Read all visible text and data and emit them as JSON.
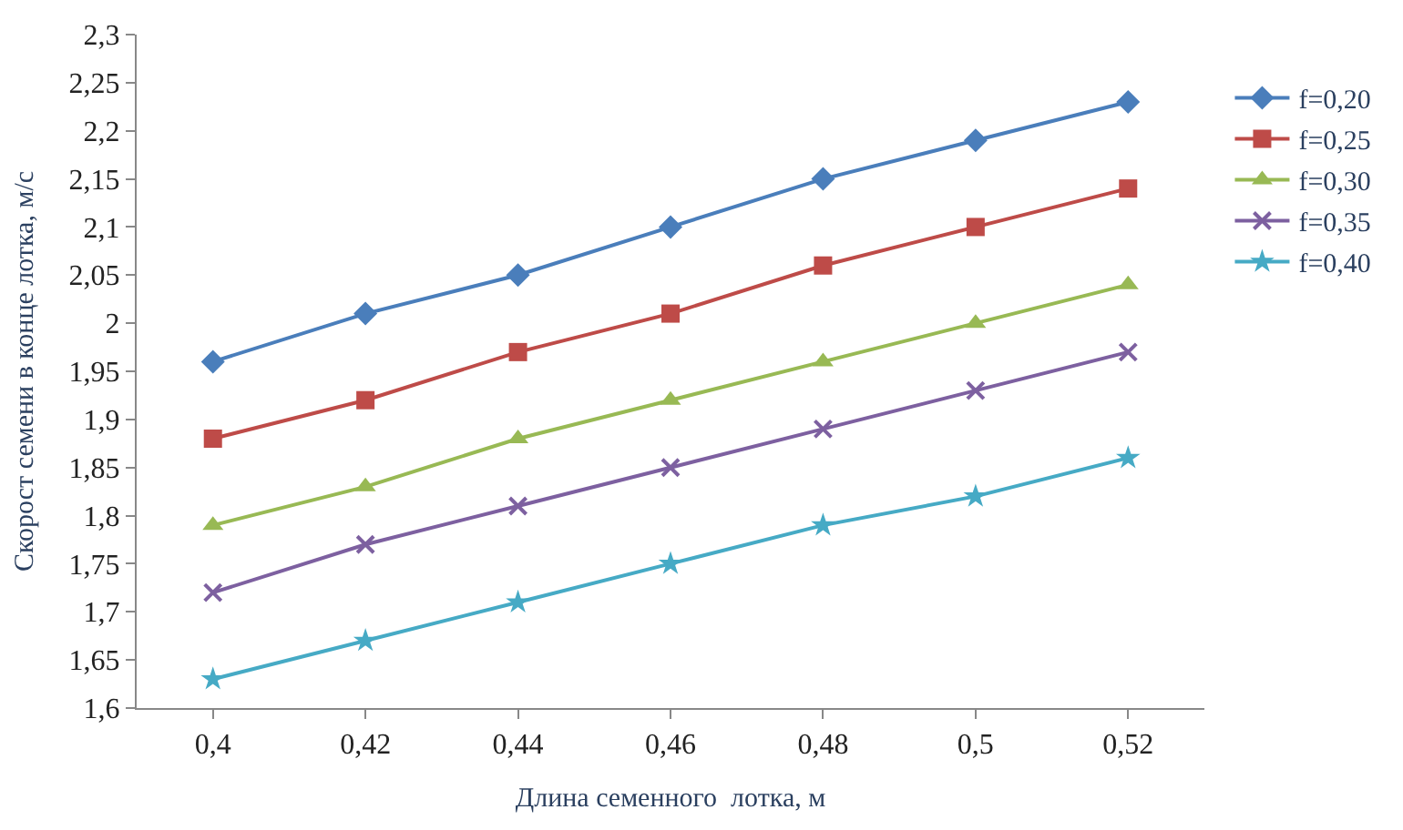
{
  "chart_data": {
    "type": "line",
    "xlabel": "Длина семенного  лотка, м",
    "ylabel": "Скорост семени в конце лотка, м/с",
    "x": [
      0.4,
      0.42,
      0.44,
      0.46,
      0.48,
      0.5,
      0.52
    ],
    "xlim": [
      0.39,
      0.53
    ],
    "xticks": [
      {
        "value": 0.4,
        "label": "0,4"
      },
      {
        "value": 0.42,
        "label": "0,42"
      },
      {
        "value": 0.44,
        "label": "0,44"
      },
      {
        "value": 0.46,
        "label": "0,46"
      },
      {
        "value": 0.48,
        "label": "0,48"
      },
      {
        "value": 0.5,
        "label": "0,5"
      },
      {
        "value": 0.52,
        "label": "0,52"
      }
    ],
    "ylim": [
      1.6,
      2.3
    ],
    "yticks": [
      {
        "value": 1.6,
        "label": "1,6"
      },
      {
        "value": 1.65,
        "label": "1,65"
      },
      {
        "value": 1.7,
        "label": "1,7"
      },
      {
        "value": 1.75,
        "label": "1,75"
      },
      {
        "value": 1.8,
        "label": "1,8"
      },
      {
        "value": 1.85,
        "label": "1,85"
      },
      {
        "value": 1.9,
        "label": "1,9"
      },
      {
        "value": 1.95,
        "label": "1,95"
      },
      {
        "value": 2,
        "label": "2"
      },
      {
        "value": 2.05,
        "label": "2,05"
      },
      {
        "value": 2.1,
        "label": "2,1"
      },
      {
        "value": 2.15,
        "label": "2,15"
      },
      {
        "value": 2.2,
        "label": "2,2"
      },
      {
        "value": 2.25,
        "label": "2,25"
      },
      {
        "value": 2.3,
        "label": "2,3"
      }
    ],
    "grid": false,
    "legend": "right",
    "series": [
      {
        "name": "f=0,20",
        "color": "#4a7ebb",
        "marker": "diamond",
        "values": [
          1.96,
          2.01,
          2.05,
          2.1,
          2.15,
          2.19,
          2.23
        ]
      },
      {
        "name": "f=0,25",
        "color": "#be4b48",
        "marker": "square",
        "values": [
          1.88,
          1.92,
          1.97,
          2.01,
          2.06,
          2.1,
          2.14
        ]
      },
      {
        "name": "f=0,30",
        "color": "#98b954",
        "marker": "triangle",
        "values": [
          1.79,
          1.83,
          1.88,
          1.92,
          1.96,
          2.0,
          2.04
        ]
      },
      {
        "name": "f=0,35",
        "color": "#7d60a0",
        "marker": "cross",
        "values": [
          1.72,
          1.77,
          1.81,
          1.85,
          1.89,
          1.93,
          1.97
        ]
      },
      {
        "name": "f=0,40",
        "color": "#46aac5",
        "marker": "star",
        "values": [
          1.63,
          1.67,
          1.71,
          1.75,
          1.79,
          1.82,
          1.86
        ]
      }
    ]
  }
}
